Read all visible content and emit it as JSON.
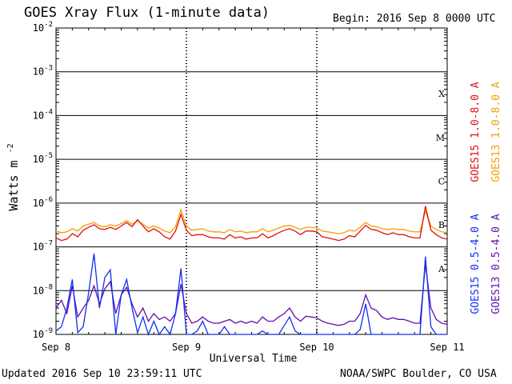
{
  "header": {
    "title": "GOES Xray Flux (1-minute data)",
    "begin": "Begin:  2016 Sep 8 0000 UTC"
  },
  "footer": {
    "updated": "Updated 2016 Sep 10 23:59:11 UTC",
    "credit": "NOAA/SWPC Boulder, CO USA"
  },
  "colors": {
    "goes15_long": "#e01010",
    "goes13_long": "#f0a000",
    "goes15_short": "#1030f0",
    "goes13_short": "#6010b0",
    "grid": "#000000"
  },
  "chart_data": {
    "type": "line",
    "title": "GOES Xray Flux (1-minute data)",
    "xlabel": "Universal Time",
    "ylabel": "Watts m",
    "ylabel_superscript": "-2",
    "y_scale": "log",
    "ylim": [
      1e-09,
      0.01
    ],
    "y_ticks": [
      {
        "base": "10",
        "exp": "-9",
        "value": 1e-09
      },
      {
        "base": "10",
        "exp": "-8",
        "value": 1e-08
      },
      {
        "base": "10",
        "exp": "-7",
        "value": 1e-07
      },
      {
        "base": "10",
        "exp": "-6",
        "value": 1e-06
      },
      {
        "base": "10",
        "exp": "-5",
        "value": 1e-05
      },
      {
        "base": "10",
        "exp": "-4",
        "value": 0.0001
      },
      {
        "base": "10",
        "exp": "-3",
        "value": 0.001
      },
      {
        "base": "10",
        "exp": "-2",
        "value": 0.01
      }
    ],
    "x_ticks": [
      "Sep 8",
      "Sep 9",
      "Sep 10",
      "Sep 11"
    ],
    "x_unit": "hours since 2016 Sep 8 0000 UTC",
    "xlim": [
      0,
      72
    ],
    "flare_classes": [
      {
        "label": "A",
        "lower": 1e-08
      },
      {
        "label": "B",
        "lower": 1e-07
      },
      {
        "label": "C",
        "lower": 1e-06
      },
      {
        "label": "M",
        "lower": 1e-05
      },
      {
        "label": "X",
        "lower": 0.0001
      }
    ],
    "grid": true,
    "legend_position": "right",
    "series": [
      {
        "name": "GOES15 1.0-8.0 A",
        "color": "#e01010",
        "points": [
          [
            0,
            1.6e-07
          ],
          [
            1,
            1.4e-07
          ],
          [
            2,
            1.5e-07
          ],
          [
            3,
            2e-07
          ],
          [
            4,
            1.7e-07
          ],
          [
            5,
            2.4e-07
          ],
          [
            6,
            2.8e-07
          ],
          [
            7,
            3.2e-07
          ],
          [
            8,
            2.6e-07
          ],
          [
            9,
            2.5e-07
          ],
          [
            10,
            2.8e-07
          ],
          [
            11,
            2.5e-07
          ],
          [
            12,
            3e-07
          ],
          [
            13,
            3.6e-07
          ],
          [
            14,
            2.9e-07
          ],
          [
            15,
            4.2e-07
          ],
          [
            16,
            3e-07
          ],
          [
            17,
            2.2e-07
          ],
          [
            18,
            2.6e-07
          ],
          [
            19,
            2.2e-07
          ],
          [
            20,
            1.7e-07
          ],
          [
            21,
            1.5e-07
          ],
          [
            22,
            2.3e-07
          ],
          [
            23,
            5.5e-07
          ],
          [
            24,
            2.4e-07
          ],
          [
            25,
            1.8e-07
          ],
          [
            26,
            1.9e-07
          ],
          [
            27,
            1.9e-07
          ],
          [
            28,
            1.7e-07
          ],
          [
            29,
            1.6e-07
          ],
          [
            30,
            1.6e-07
          ],
          [
            31,
            1.5e-07
          ],
          [
            32,
            1.9e-07
          ],
          [
            33,
            1.6e-07
          ],
          [
            34,
            1.7e-07
          ],
          [
            35,
            1.5e-07
          ],
          [
            36,
            1.6e-07
          ],
          [
            37,
            1.6e-07
          ],
          [
            38,
            2e-07
          ],
          [
            39,
            1.6e-07
          ],
          [
            40,
            1.8e-07
          ],
          [
            41,
            2.1e-07
          ],
          [
            42,
            2.4e-07
          ],
          [
            43,
            2.6e-07
          ],
          [
            44,
            2.3e-07
          ],
          [
            45,
            1.9e-07
          ],
          [
            46,
            2.3e-07
          ],
          [
            47,
            2.3e-07
          ],
          [
            48,
            2.2e-07
          ],
          [
            49,
            1.7e-07
          ],
          [
            50,
            1.6e-07
          ],
          [
            51,
            1.5e-07
          ],
          [
            52,
            1.4e-07
          ],
          [
            53,
            1.5e-07
          ],
          [
            54,
            1.8e-07
          ],
          [
            55,
            1.7e-07
          ],
          [
            56,
            2.3e-07
          ],
          [
            57,
            3.1e-07
          ],
          [
            58,
            2.5e-07
          ],
          [
            59,
            2.4e-07
          ],
          [
            60,
            2.1e-07
          ],
          [
            61,
            1.9e-07
          ],
          [
            62,
            2.1e-07
          ],
          [
            63,
            1.9e-07
          ],
          [
            64,
            1.9e-07
          ],
          [
            65,
            1.7e-07
          ],
          [
            66,
            1.6e-07
          ],
          [
            67,
            1.6e-07
          ],
          [
            68,
            8.5e-07
          ],
          [
            69,
            2.4e-07
          ],
          [
            70,
            1.9e-07
          ],
          [
            71,
            1.6e-07
          ],
          [
            72,
            1.5e-07
          ]
        ]
      },
      {
        "name": "GOES13 1.0-8.0 A",
        "color": "#f0a000",
        "points": [
          [
            0,
            2.3e-07
          ],
          [
            1,
            2.1e-07
          ],
          [
            2,
            2.2e-07
          ],
          [
            3,
            2.6e-07
          ],
          [
            4,
            2.3e-07
          ],
          [
            5,
            3e-07
          ],
          [
            6,
            3.3e-07
          ],
          [
            7,
            3.6e-07
          ],
          [
            8,
            3e-07
          ],
          [
            9,
            2.9e-07
          ],
          [
            10,
            3.2e-07
          ],
          [
            11,
            3e-07
          ],
          [
            12,
            3.4e-07
          ],
          [
            13,
            4e-07
          ],
          [
            14,
            3.3e-07
          ],
          [
            15,
            3.9e-07
          ],
          [
            16,
            3.3e-07
          ],
          [
            17,
            2.7e-07
          ],
          [
            18,
            3e-07
          ],
          [
            19,
            2.7e-07
          ],
          [
            20,
            2.3e-07
          ],
          [
            21,
            2.1e-07
          ],
          [
            22,
            2.9e-07
          ],
          [
            23,
            7e-07
          ],
          [
            24,
            3e-07
          ],
          [
            25,
            2.4e-07
          ],
          [
            26,
            2.5e-07
          ],
          [
            27,
            2.6e-07
          ],
          [
            28,
            2.3e-07
          ],
          [
            29,
            2.2e-07
          ],
          [
            30,
            2.2e-07
          ],
          [
            31,
            2.1e-07
          ],
          [
            32,
            2.5e-07
          ],
          [
            33,
            2.2e-07
          ],
          [
            34,
            2.3e-07
          ],
          [
            35,
            2.1e-07
          ],
          [
            36,
            2.2e-07
          ],
          [
            37,
            2.2e-07
          ],
          [
            38,
            2.6e-07
          ],
          [
            39,
            2.2e-07
          ],
          [
            40,
            2.4e-07
          ],
          [
            41,
            2.7e-07
          ],
          [
            42,
            3e-07
          ],
          [
            43,
            3.1e-07
          ],
          [
            44,
            2.8e-07
          ],
          [
            45,
            2.5e-07
          ],
          [
            46,
            2.8e-07
          ],
          [
            47,
            2.8e-07
          ],
          [
            48,
            2.7e-07
          ],
          [
            49,
            2.3e-07
          ],
          [
            50,
            2.2e-07
          ],
          [
            51,
            2.1e-07
          ],
          [
            52,
            2e-07
          ],
          [
            53,
            2.1e-07
          ],
          [
            54,
            2.4e-07
          ],
          [
            55,
            2.3e-07
          ],
          [
            56,
            2.8e-07
          ],
          [
            57,
            3.6e-07
          ],
          [
            58,
            3e-07
          ],
          [
            59,
            2.9e-07
          ],
          [
            60,
            2.6e-07
          ],
          [
            61,
            2.5e-07
          ],
          [
            62,
            2.6e-07
          ],
          [
            63,
            2.5e-07
          ],
          [
            64,
            2.5e-07
          ],
          [
            65,
            2.3e-07
          ],
          [
            66,
            2.2e-07
          ],
          [
            67,
            2.2e-07
          ],
          [
            68,
            6.5e-07
          ],
          [
            69,
            3e-07
          ],
          [
            70,
            2.5e-07
          ],
          [
            71,
            2.2e-07
          ],
          [
            72,
            2.1e-07
          ]
        ]
      },
      {
        "name": "GOES15 0.5-4.0 A",
        "color": "#1030f0",
        "points": [
          [
            0,
            1.2e-09
          ],
          [
            1,
            1.5e-09
          ],
          [
            2,
            4e-09
          ],
          [
            3,
            1.8e-08
          ],
          [
            4,
            1.1e-09
          ],
          [
            5,
            1.5e-09
          ],
          [
            6,
            9e-09
          ],
          [
            7,
            7e-08
          ],
          [
            8,
            4e-09
          ],
          [
            9,
            2e-08
          ],
          [
            10,
            3e-08
          ],
          [
            11,
            1e-09
          ],
          [
            12,
            8e-09
          ],
          [
            13,
            1.8e-08
          ],
          [
            14,
            4e-09
          ],
          [
            15,
            1.1e-09
          ],
          [
            16,
            2.5e-09
          ],
          [
            17,
            1e-09
          ],
          [
            18,
            2e-09
          ],
          [
            19,
            1e-09
          ],
          [
            20,
            1.5e-09
          ],
          [
            21,
            1e-09
          ],
          [
            22,
            3e-09
          ],
          [
            23,
            3.2e-08
          ],
          [
            24,
            1e-09
          ],
          [
            25,
            1e-09
          ],
          [
            26,
            1.2e-09
          ],
          [
            27,
            2e-09
          ],
          [
            28,
            1e-09
          ],
          [
            29,
            1e-09
          ],
          [
            30,
            1e-09
          ],
          [
            31,
            1.5e-09
          ],
          [
            32,
            1e-09
          ],
          [
            33,
            1e-09
          ],
          [
            34,
            1e-09
          ],
          [
            35,
            1e-09
          ],
          [
            36,
            1e-09
          ],
          [
            37,
            1e-09
          ],
          [
            38,
            1.2e-09
          ],
          [
            39,
            1e-09
          ],
          [
            40,
            1e-09
          ],
          [
            41,
            1e-09
          ],
          [
            42,
            1.6e-09
          ],
          [
            43,
            2.5e-09
          ],
          [
            44,
            1.2e-09
          ],
          [
            45,
            1e-09
          ],
          [
            46,
            1e-09
          ],
          [
            47,
            1e-09
          ],
          [
            48,
            1e-09
          ],
          [
            49,
            1e-09
          ],
          [
            50,
            1e-09
          ],
          [
            51,
            1e-09
          ],
          [
            52,
            1e-09
          ],
          [
            53,
            1e-09
          ],
          [
            54,
            1e-09
          ],
          [
            55,
            1e-09
          ],
          [
            56,
            1.3e-09
          ],
          [
            57,
            5e-09
          ],
          [
            58,
            1e-09
          ],
          [
            59,
            1e-09
          ],
          [
            60,
            1e-09
          ],
          [
            61,
            1e-09
          ],
          [
            62,
            1e-09
          ],
          [
            63,
            1e-09
          ],
          [
            64,
            1e-09
          ],
          [
            65,
            1e-09
          ],
          [
            66,
            1e-09
          ],
          [
            67,
            1e-09
          ],
          [
            68,
            6e-08
          ],
          [
            69,
            1.5e-09
          ],
          [
            70,
            1e-09
          ],
          [
            71,
            1e-09
          ],
          [
            72,
            1e-09
          ]
        ]
      },
      {
        "name": "GOES13 0.5-4.0 A",
        "color": "#6010b0",
        "points": [
          [
            0,
            4e-09
          ],
          [
            1,
            6e-09
          ],
          [
            2,
            3e-09
          ],
          [
            3,
            1.3e-08
          ],
          [
            4,
            2.5e-09
          ],
          [
            5,
            4e-09
          ],
          [
            6,
            6e-09
          ],
          [
            7,
            1.3e-08
          ],
          [
            8,
            5e-09
          ],
          [
            9,
            1.1e-08
          ],
          [
            10,
            1.6e-08
          ],
          [
            11,
            3e-09
          ],
          [
            12,
            8e-09
          ],
          [
            13,
            1.2e-08
          ],
          [
            14,
            5e-09
          ],
          [
            15,
            2.5e-09
          ],
          [
            16,
            4e-09
          ],
          [
            17,
            2e-09
          ],
          [
            18,
            3e-09
          ],
          [
            19,
            2.2e-09
          ],
          [
            20,
            2.5e-09
          ],
          [
            21,
            2e-09
          ],
          [
            22,
            3e-09
          ],
          [
            23,
            1.4e-08
          ],
          [
            24,
            3e-09
          ],
          [
            25,
            1.8e-09
          ],
          [
            26,
            2e-09
          ],
          [
            27,
            2.5e-09
          ],
          [
            28,
            2e-09
          ],
          [
            29,
            1.8e-09
          ],
          [
            30,
            1.8e-09
          ],
          [
            31,
            2e-09
          ],
          [
            32,
            2.2e-09
          ],
          [
            33,
            1.8e-09
          ],
          [
            34,
            2e-09
          ],
          [
            35,
            1.8e-09
          ],
          [
            36,
            2e-09
          ],
          [
            37,
            1.8e-09
          ],
          [
            38,
            2.5e-09
          ],
          [
            39,
            2e-09
          ],
          [
            40,
            2e-09
          ],
          [
            41,
            2.5e-09
          ],
          [
            42,
            3e-09
          ],
          [
            43,
            4e-09
          ],
          [
            44,
            2.5e-09
          ],
          [
            45,
            2e-09
          ],
          [
            46,
            2.6e-09
          ],
          [
            47,
            2.5e-09
          ],
          [
            48,
            2.4e-09
          ],
          [
            49,
            2e-09
          ],
          [
            50,
            1.8e-09
          ],
          [
            51,
            1.7e-09
          ],
          [
            52,
            1.6e-09
          ],
          [
            53,
            1.7e-09
          ],
          [
            54,
            2e-09
          ],
          [
            55,
            2e-09
          ],
          [
            56,
            3e-09
          ],
          [
            57,
            8e-09
          ],
          [
            58,
            4e-09
          ],
          [
            59,
            3.5e-09
          ],
          [
            60,
            2.5e-09
          ],
          [
            61,
            2.2e-09
          ],
          [
            62,
            2.4e-09
          ],
          [
            63,
            2.2e-09
          ],
          [
            64,
            2.2e-09
          ],
          [
            65,
            2e-09
          ],
          [
            66,
            1.8e-09
          ],
          [
            67,
            1.8e-09
          ],
          [
            68,
            4e-08
          ],
          [
            69,
            4e-09
          ],
          [
            70,
            2.2e-09
          ],
          [
            71,
            1.8e-09
          ],
          [
            72,
            1.7e-09
          ]
        ]
      }
    ]
  }
}
